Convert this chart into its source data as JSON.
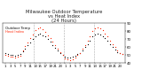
{
  "title": "Milwaukee Outdoor Temperature\nvs Heat Index\n(24 Hours)",
  "temp_color": "#000000",
  "heat_color": "#ff2200",
  "heat_color_dot": "#ff8800",
  "background": "#ffffff",
  "temp": [
    52,
    51,
    50,
    50,
    49,
    50,
    51,
    55,
    58,
    62,
    66,
    70,
    74,
    76,
    77,
    75,
    73,
    70,
    67,
    63,
    59,
    56,
    53,
    50,
    48,
    47,
    47,
    48,
    49,
    51,
    53,
    56,
    60,
    64,
    68,
    73,
    76,
    77,
    76,
    74,
    71,
    68,
    64,
    60,
    57,
    54,
    52,
    51
  ],
  "heat": [
    50,
    49,
    48,
    48,
    47,
    48,
    49,
    56,
    61,
    66,
    71,
    76,
    81,
    84,
    85,
    82,
    79,
    75,
    71,
    67,
    62,
    58,
    54,
    50,
    46,
    45,
    44,
    45,
    47,
    50,
    53,
    58,
    63,
    68,
    74,
    80,
    84,
    85,
    84,
    81,
    77,
    73,
    68,
    64,
    60,
    56,
    53,
    51
  ],
  "ylim": [
    40,
    90
  ],
  "xlim": [
    0,
    49
  ],
  "yticks": [
    40,
    50,
    60,
    70,
    80,
    90
  ],
  "ytick_labels": [
    "40",
    "50",
    "60",
    "70",
    "80",
    "90"
  ],
  "vline_color": "#aaaaaa",
  "vlines": [
    12.5,
    24.5,
    36.5
  ],
  "title_fontsize": 3.8,
  "tick_fontsize": 2.8,
  "legend_temp": "Outdoor Temp",
  "legend_heat": "Heat Index",
  "legend_fontsize": 2.8
}
